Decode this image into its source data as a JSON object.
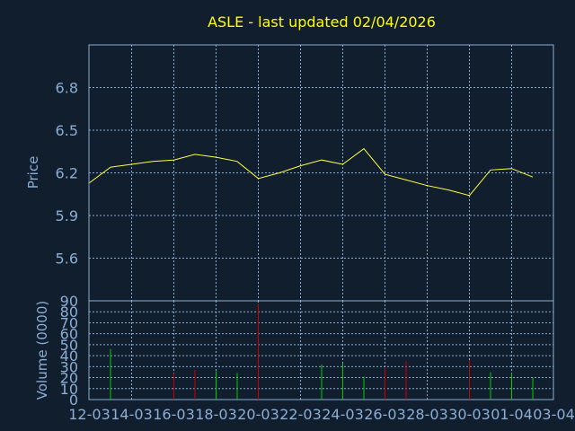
{
  "chart_data": [
    {
      "type": "line",
      "title": "ASLE - last updated 02/04/2026",
      "xlabel": "",
      "ylabel": "Price",
      "ylim": [
        5.3,
        7.1
      ],
      "yticks": [
        "5.6",
        "5.9",
        "6.2",
        "6.5",
        "6.8"
      ],
      "grid": true,
      "x": [
        "12-03",
        "13-03",
        "14-03",
        "15-03",
        "16-03",
        "17-03",
        "18-03",
        "19-03",
        "20-03",
        "21-03",
        "22-03",
        "23-03",
        "24-03",
        "25-03",
        "26-03",
        "27-03",
        "28-03",
        "29-03",
        "30-03",
        "31-03",
        "01-04",
        "02-04"
      ],
      "series": [
        {
          "values": [
            6.13,
            6.24,
            6.26,
            6.28,
            6.29,
            6.33,
            6.31,
            6.28,
            6.16,
            6.2,
            6.25,
            6.29,
            6.26,
            6.37,
            6.19,
            6.15,
            6.11,
            6.08,
            6.04,
            6.22,
            6.23,
            6.17
          ],
          "color": "#ffff40"
        }
      ]
    },
    {
      "type": "bar",
      "xlabel": "",
      "ylabel": "Volume (0000)",
      "ylim": [
        0,
        90
      ],
      "yticks": [
        "0",
        "10",
        "20",
        "30",
        "40",
        "50",
        "60",
        "70",
        "80",
        "90"
      ],
      "grid": true,
      "xticks": [
        "12-03",
        "14-03",
        "16-03",
        "18-03",
        "20-03",
        "22-03",
        "24-03",
        "26-03",
        "28-03",
        "30-03",
        "01-04",
        "03-04"
      ],
      "x": [
        "13-03",
        "16-03",
        "17-03",
        "18-03",
        "19-03",
        "20-03",
        "23-03",
        "24-03",
        "25-03",
        "26-03",
        "27-03",
        "30-03",
        "31-03",
        "01-04",
        "02-04"
      ],
      "values": [
        46,
        24,
        27,
        26,
        24,
        87,
        32,
        33,
        21,
        29,
        35,
        36,
        25,
        24,
        20
      ],
      "colors": [
        "#00cc00",
        "#cc0000",
        "#cc0000",
        "#00cc00",
        "#00cc00",
        "#cc0000",
        "#00cc00",
        "#00cc00",
        "#00cc00",
        "#cc0000",
        "#cc0000",
        "#cc0000",
        "#00cc00",
        "#00cc00",
        "#00cc00"
      ]
    }
  ],
  "colors": {
    "background": "#111e2e",
    "frame": "#8aaed4",
    "grid": "#8aaed4",
    "axis_text": "#8aaed4",
    "title": "#ffff00",
    "line": "#ffff40"
  }
}
